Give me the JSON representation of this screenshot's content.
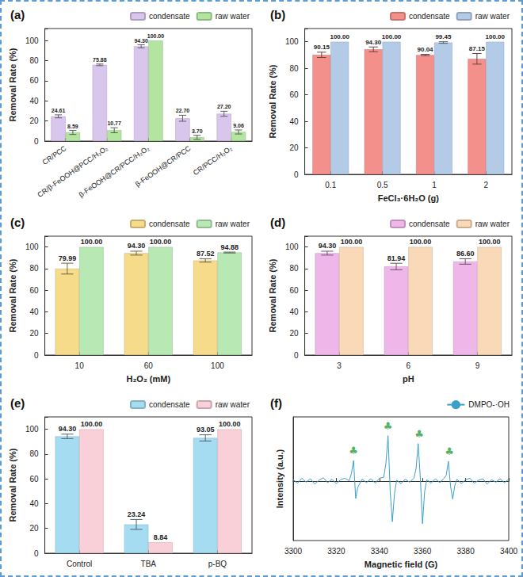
{
  "chart_data": [
    {
      "type": "bar",
      "title": "(a)",
      "categories": [
        "CR/PCC",
        "CR/β-FeOOH@PCC/H₂O₂",
        "β-FeOOH@CR/PCC/H₂O₂",
        "β-FeOOH@CR/PCC",
        "CR/PCC/H₂O₂"
      ],
      "series": [
        {
          "name": "condensate",
          "color": "#d9c6ec",
          "values": [
            24.61,
            75.88,
            94.3,
            22.7,
            27.2
          ],
          "value_labels": [
            "24.61",
            "75.88",
            "94.30",
            "22.70",
            "27.20"
          ],
          "errors": [
            1.5,
            0.8,
            1.5,
            3.0,
            2.5
          ]
        },
        {
          "name": "raw water",
          "color": "#b3e5a0",
          "values": [
            8.59,
            10.77,
            100.0,
            3.7,
            9.06
          ],
          "value_labels": [
            "8.59",
            "10.77",
            "100.00",
            "3.70",
            "9.06"
          ],
          "errors": [
            2.0,
            2.5,
            0,
            2.0,
            2.0
          ]
        }
      ],
      "ylabel": "Removal Rate (%)",
      "ylim": [
        0,
        112
      ],
      "yticks": [
        0,
        20,
        40,
        60,
        80,
        100
      ],
      "grid": false,
      "legend": "upper right",
      "data_labels": true
    },
    {
      "type": "bar",
      "title": "(b)",
      "categories": [
        "0.1",
        "0.5",
        "1",
        "2"
      ],
      "series": [
        {
          "name": "condensate",
          "color": "#f4908c",
          "values": [
            90.15,
            94.3,
            90.04,
            87.15
          ],
          "value_labels": [
            "90.15",
            "94.30",
            "90.04",
            "87.15"
          ],
          "errors": [
            2.0,
            1.8,
            0.5,
            4.0
          ]
        },
        {
          "name": "raw water",
          "color": "#b4cbe8",
          "values": [
            100.0,
            100.0,
            99.45,
            100.0
          ],
          "value_labels": [
            "100.00",
            "100.00",
            "99.45",
            "100.00"
          ],
          "errors": [
            0,
            0,
            0.6,
            0
          ]
        }
      ],
      "xlabel": "FeCl₃·6H₂O (g)",
      "ylabel": "Removal Rate (%)",
      "ylim": [
        0,
        110
      ],
      "yticks": [
        0,
        20,
        40,
        60,
        80,
        100
      ],
      "grid": false,
      "legend": "upper right",
      "data_labels": true
    },
    {
      "type": "bar",
      "title": "(c)",
      "categories": [
        "10",
        "60",
        "100"
      ],
      "series": [
        {
          "name": "condensate",
          "color": "#f5db8a",
          "values": [
            79.99,
            94.3,
            87.52
          ],
          "value_labels": [
            "79.99",
            "94.30",
            "87.52"
          ],
          "errors": [
            5.0,
            1.8,
            1.5
          ]
        },
        {
          "name": "raw water",
          "color": "#b8e8b4",
          "values": [
            100.0,
            100.0,
            94.88
          ],
          "value_labels": [
            "100.00",
            "100.00",
            "94.88"
          ],
          "errors": [
            0,
            0,
            0.4
          ]
        }
      ],
      "xlabel": "H₂O₂ (mM)",
      "ylabel": "Removal Rate (%)",
      "ylim": [
        0,
        110
      ],
      "yticks": [
        0,
        20,
        40,
        60,
        80,
        100
      ],
      "grid": false,
      "legend": "upper right",
      "data_labels": true
    },
    {
      "type": "bar",
      "title": "(d)",
      "categories": [
        "3",
        "6",
        "9"
      ],
      "series": [
        {
          "name": "condensate",
          "color": "#efb6ea",
          "values": [
            94.3,
            81.94,
            86.6
          ],
          "value_labels": [
            "94.30",
            "81.94",
            "86.60"
          ],
          "errors": [
            1.8,
            3.0,
            2.5
          ]
        },
        {
          "name": "raw water",
          "color": "#f9d9b8",
          "values": [
            100.0,
            100.0,
            100.0
          ],
          "value_labels": [
            "100.00",
            "100.00",
            "100.00"
          ],
          "errors": [
            0,
            0,
            0
          ]
        }
      ],
      "xlabel": "pH",
      "ylabel": "Removal Rate (%)",
      "ylim": [
        0,
        110
      ],
      "yticks": [
        0,
        20,
        40,
        60,
        80,
        100
      ],
      "grid": false,
      "legend": "upper right",
      "data_labels": true
    },
    {
      "type": "bar",
      "title": "(e)",
      "categories": [
        "Control",
        "TBA",
        "p-BQ"
      ],
      "series": [
        {
          "name": "condensate",
          "color": "#a6dcf2",
          "values": [
            94.3,
            23.24,
            93.05
          ],
          "value_labels": [
            "94.30",
            "23.24",
            "93.05"
          ],
          "errors": [
            1.8,
            4.0,
            2.5
          ]
        },
        {
          "name": "raw water",
          "color": "#f9cfd8",
          "values": [
            100.0,
            8.84,
            100.0
          ],
          "value_labels": [
            "100.00",
            "8.84",
            "100.00"
          ],
          "errors": [
            0,
            0,
            0
          ]
        }
      ],
      "ylabel": "Removal Rate (%)",
      "ylim": [
        0,
        110
      ],
      "yticks": [
        0,
        20,
        40,
        60,
        80,
        100
      ],
      "grid": false,
      "legend": "upper right",
      "data_labels": true
    },
    {
      "type": "line",
      "title": "(f)",
      "x": [
        3300,
        3302,
        3304,
        3306,
        3308,
        3310,
        3312,
        3314,
        3316,
        3318,
        3320,
        3322,
        3324,
        3326,
        3327,
        3328,
        3329,
        3330,
        3332,
        3334,
        3336,
        3338,
        3340,
        3342,
        3343,
        3344,
        3345,
        3346,
        3347,
        3348,
        3350,
        3352,
        3354,
        3356,
        3357,
        3358,
        3359,
        3360,
        3361,
        3362,
        3364,
        3366,
        3368,
        3370,
        3371,
        3372,
        3373,
        3374,
        3375,
        3376,
        3378,
        3380,
        3382,
        3384,
        3386,
        3388,
        3390,
        3392,
        3394,
        3396,
        3398,
        3400
      ],
      "series": [
        {
          "name": "DMPO-·OH",
          "color": "#3aa0c8",
          "line_style": "solid",
          "values": [
            0.3,
            -0.4,
            0.6,
            -0.2,
            0.5,
            -0.6,
            0.2,
            0.7,
            -0.3,
            0.4,
            -0.5,
            0.3,
            0.6,
            0.1,
            1.5,
            4.2,
            -3.5,
            -1.2,
            0.4,
            -0.3,
            0.5,
            -0.4,
            0.6,
            0.8,
            3.5,
            9.2,
            -2.0,
            -8.2,
            -2.5,
            0.2,
            -0.5,
            0.4,
            -0.2,
            0.6,
            2.5,
            7.6,
            0.5,
            -8.6,
            -2.0,
            0.3,
            -0.4,
            0.5,
            -0.3,
            0.6,
            1.2,
            4.0,
            -1.0,
            -3.6,
            -0.8,
            0.4,
            -0.5,
            0.3,
            0.6,
            -0.4,
            0.2,
            0.5,
            -0.6,
            0.3,
            -0.2,
            0.5,
            -0.3,
            0.4
          ]
        }
      ],
      "annotations": [
        {
          "x": 3328,
          "y": 6.2,
          "text": "♣"
        },
        {
          "x": 3344,
          "y": 11.2,
          "text": "♣"
        },
        {
          "x": 3358.5,
          "y": 9.6,
          "text": "♣"
        },
        {
          "x": 3372.5,
          "y": 6.0,
          "text": "♣"
        }
      ],
      "xlabel": "Magnetic field (G)",
      "ylabel": "Intensity (a.u.)",
      "xlim": [
        3300,
        3400
      ],
      "xticks": [
        3300,
        3320,
        3340,
        3360,
        3380,
        3400
      ],
      "ylim": [
        -12,
        13
      ],
      "tick_labels": "x",
      "grid": false,
      "legend": "upper right"
    }
  ]
}
